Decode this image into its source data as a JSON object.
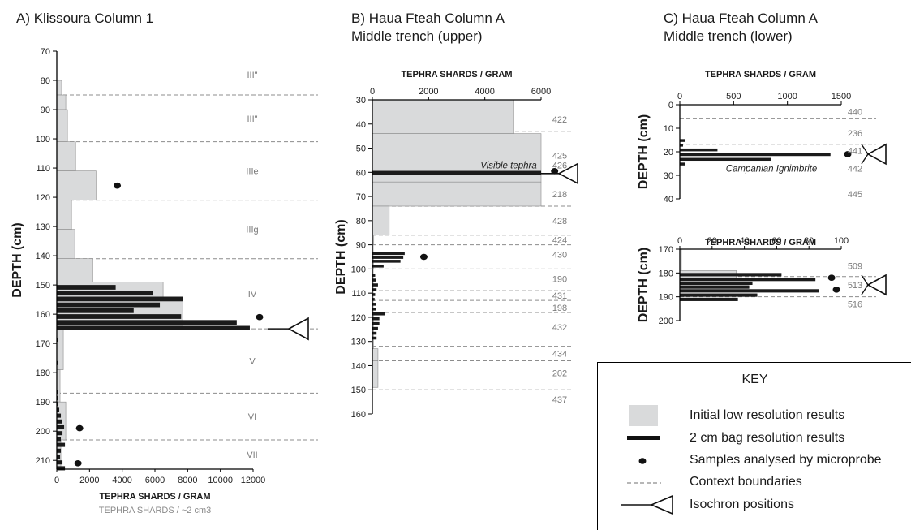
{
  "colors": {
    "low_res_fill": "#d9dadb",
    "low_res_stroke": "#8a8a8a",
    "high_res_fill": "#1b1b1b",
    "boundary": "#8c8c8c",
    "context_label": "#7a7a7a"
  },
  "panels": {
    "a": {
      "title_line1": "A) Klissoura Column 1",
      "title_line2": ""
    },
    "b": {
      "title_line1": "B) Haua Fteah Column A",
      "title_line2": "Middle trench (upper)"
    },
    "c": {
      "title_line1": "C) Haua Fteah Column A",
      "title_line2": "Middle trench (lower)"
    }
  },
  "key": {
    "title": "KEY",
    "items": [
      {
        "symbol": "low-res-swatch",
        "label": "Initial low resolution results"
      },
      {
        "symbol": "high-res-bar",
        "label": "2 cm bag resolution results"
      },
      {
        "symbol": "microprobe-dot",
        "label": "Samples analysed by microprobe"
      },
      {
        "symbol": "dashed-line",
        "label": "Context boundaries"
      },
      {
        "symbol": "isochron-triangle",
        "label": "Isochron positions"
      }
    ]
  },
  "chart_data": [
    {
      "id": "A",
      "type": "bar",
      "orientation": "horizontal",
      "title": "A) Klissoura Column 1",
      "xlabel": "TEPHRA SHARDS / GRAM",
      "xlabel2": "TEPHRA SHARDS / ~2 cm3",
      "ylabel": "DEPTH (cm)",
      "xlim": [
        0,
        12000
      ],
      "ylim": [
        70,
        213
      ],
      "xticks": [
        0,
        2000,
        4000,
        6000,
        8000,
        10000,
        12000
      ],
      "yticks": [
        70,
        80,
        90,
        100,
        110,
        120,
        130,
        140,
        150,
        160,
        170,
        180,
        190,
        200,
        210
      ],
      "low_res": [
        [
          70,
          80,
          0
        ],
        [
          80,
          85,
          300
        ],
        [
          85,
          90,
          550
        ],
        [
          90,
          101,
          650
        ],
        [
          101,
          111,
          1150
        ],
        [
          111,
          121,
          2400
        ],
        [
          121,
          131,
          900
        ],
        [
          131,
          141,
          1100
        ],
        [
          141,
          149,
          2200
        ],
        [
          149,
          165,
          6500
        ],
        [
          155,
          165,
          7700
        ],
        [
          165,
          179,
          400
        ],
        [
          179,
          190,
          200
        ],
        [
          190,
          203,
          550
        ],
        [
          203,
          213,
          250
        ]
      ],
      "high_res": [
        [
          150,
          151.6,
          3600
        ],
        [
          152,
          153.6,
          5900
        ],
        [
          154,
          155.6,
          7700
        ],
        [
          156,
          157.6,
          6300
        ],
        [
          158,
          159.6,
          4700
        ],
        [
          160,
          161.6,
          7600
        ],
        [
          162,
          163.6,
          11000
        ],
        [
          164,
          165.4,
          11800
        ],
        [
          168,
          169.4,
          50
        ],
        [
          176,
          177.4,
          30
        ],
        [
          186,
          187.4,
          20
        ],
        [
          188,
          189.4,
          60
        ],
        [
          190,
          191.4,
          80
        ],
        [
          192,
          193.4,
          150
        ],
        [
          194,
          195.4,
          250
        ],
        [
          196,
          197.4,
          300
        ],
        [
          198,
          199.4,
          450
        ],
        [
          200,
          201.4,
          350
        ],
        [
          202,
          203.4,
          250
        ],
        [
          204,
          205.4,
          500
        ],
        [
          206,
          207.4,
          250
        ],
        [
          208,
          209.4,
          200
        ],
        [
          210,
          211.4,
          350
        ],
        [
          212,
          213.4,
          500
        ]
      ],
      "microprobe": [
        [
          3300,
          116
        ],
        [
          12000,
          161
        ],
        [
          1000,
          199
        ],
        [
          900,
          211
        ]
      ],
      "boundaries": [
        85,
        101,
        121,
        141,
        165,
        187,
        203
      ],
      "contexts": [
        {
          "label": "III\"",
          "depth": 78
        },
        {
          "label": "III\"",
          "depth": 93
        },
        {
          "label": "IIIe",
          "depth": 111
        },
        {
          "label": "IIIg",
          "depth": 131
        },
        {
          "label": "IV",
          "depth": 153
        },
        {
          "label": "V",
          "depth": 176
        },
        {
          "label": "VI",
          "depth": 195
        },
        {
          "label": "VII",
          "depth": 208
        }
      ],
      "isochrons": [
        165
      ]
    },
    {
      "id": "B",
      "type": "bar",
      "orientation": "horizontal",
      "title": "B) Haua Fteah Column A Middle trench (upper)",
      "xlabel": "TEPHRA SHARDS / GRAM",
      "ylabel": "DEPTH (cm)",
      "xlim": [
        0,
        6000
      ],
      "ylim": [
        30,
        160
      ],
      "xticks": [
        0,
        2000,
        4000,
        6000
      ],
      "yticks": [
        30,
        40,
        50,
        60,
        70,
        80,
        90,
        100,
        110,
        120,
        130,
        140,
        150,
        160
      ],
      "low_res": [
        [
          30,
          44,
          5000
        ],
        [
          44,
          60,
          6000
        ],
        [
          60,
          64,
          6000
        ],
        [
          64,
          74,
          6000
        ],
        [
          74,
          86,
          600
        ],
        [
          86,
          90,
          50
        ],
        [
          90,
          95,
          30
        ],
        [
          95,
          100,
          40
        ],
        [
          100,
          109,
          30
        ],
        [
          109,
          113,
          30
        ],
        [
          113,
          118,
          30
        ],
        [
          118,
          128,
          40
        ],
        [
          128,
          133,
          40
        ],
        [
          133,
          138,
          200
        ],
        [
          138,
          149,
          200
        ]
      ],
      "high_res": [
        [
          59.4,
          61,
          6000
        ],
        [
          93,
          94.2,
          1150
        ],
        [
          94.6,
          95.8,
          1100
        ],
        [
          96.2,
          97.4,
          1000
        ],
        [
          98.2,
          99.4,
          400
        ],
        [
          102,
          103.2,
          100
        ],
        [
          104,
          105.2,
          120
        ],
        [
          106,
          107.2,
          200
        ],
        [
          108,
          109.2,
          150
        ],
        [
          110,
          111.2,
          100
        ],
        [
          112,
          113.2,
          80
        ],
        [
          114,
          115.2,
          120
        ],
        [
          116,
          117.2,
          120
        ],
        [
          118,
          119.2,
          450
        ],
        [
          120,
          121.2,
          250
        ],
        [
          122,
          123.2,
          250
        ],
        [
          124,
          125.2,
          200
        ],
        [
          126,
          127.2,
          150
        ],
        [
          128,
          129.2,
          150
        ]
      ],
      "microprobe": [
        [
          6250,
          59.5
        ],
        [
          1600,
          95
        ]
      ],
      "boundaries": [
        43,
        74,
        86,
        90,
        100,
        109,
        113,
        118,
        132,
        138,
        150
      ],
      "contexts": [
        {
          "label": "422",
          "depth": 38
        },
        {
          "label": "425",
          "depth": 53
        },
        {
          "label": "426",
          "depth": 57
        },
        {
          "label": "218",
          "depth": 69
        },
        {
          "label": "428",
          "depth": 80
        },
        {
          "label": "424",
          "depth": 88
        },
        {
          "label": "430",
          "depth": 94
        },
        {
          "label": "190",
          "depth": 104
        },
        {
          "label": "431",
          "depth": 111
        },
        {
          "label": "198",
          "depth": 116
        },
        {
          "label": "432",
          "depth": 124
        },
        {
          "label": "434",
          "depth": 135
        },
        {
          "label": "202",
          "depth": 143
        },
        {
          "label": "437",
          "depth": 154
        }
      ],
      "annotations": [
        {
          "text": "Visible tephra",
          "depth": 57
        }
      ],
      "isochrons": [
        60.5
      ]
    },
    {
      "id": "C-upper",
      "type": "bar",
      "orientation": "horizontal",
      "xlabel": "TEPHRA SHARDS / GRAM",
      "ylabel": "DEPTH (cm)",
      "xlim": [
        0,
        1500
      ],
      "ylim": [
        0,
        40
      ],
      "xticks": [
        0,
        500,
        1000,
        1500
      ],
      "yticks": [
        0,
        10,
        20,
        30,
        40
      ],
      "low_res": [],
      "high_res": [
        [
          14.6,
          15.8,
          50
        ],
        [
          16.6,
          17.8,
          30
        ],
        [
          18.6,
          19.8,
          350
        ],
        [
          20.6,
          21.8,
          1400
        ],
        [
          22.6,
          23.8,
          850
        ],
        [
          24.6,
          25.8,
          50
        ]
      ],
      "microprobe": [
        [
          1500,
          21
        ]
      ],
      "boundaries": [
        6,
        16.8,
        35
      ],
      "contexts": [
        {
          "label": "440",
          "depth": 3
        },
        {
          "label": "236",
          "depth": 12
        },
        {
          "label": "441",
          "depth": 19.5
        },
        {
          "label": "442",
          "depth": 27
        },
        {
          "label": "445",
          "depth": 38
        }
      ],
      "annotations": [
        {
          "text": "Campanian Ignimbrite",
          "depth": 27
        }
      ],
      "isochrons": [
        21
      ]
    },
    {
      "id": "C-lower",
      "type": "bar",
      "orientation": "horizontal",
      "xlabel": "TEPHRA SHARDS / GRAM",
      "ylabel": "DEPTH (cm)",
      "xlim": [
        0,
        100
      ],
      "ylim": [
        170,
        200
      ],
      "xticks": [
        0,
        20,
        40,
        60,
        80,
        100
      ],
      "yticks": [
        170,
        180,
        190,
        200
      ],
      "low_res": [
        [
          170,
          179,
          1
        ],
        [
          179,
          182,
          35
        ]
      ],
      "high_res": [
        [
          180,
          181.4,
          63
        ],
        [
          182,
          183.4,
          84
        ],
        [
          183.6,
          185,
          45
        ],
        [
          185.2,
          186.6,
          43
        ],
        [
          186.8,
          188.2,
          86
        ],
        [
          188.6,
          190,
          48
        ],
        [
          190.4,
          191.8,
          36
        ]
      ],
      "microprobe": [
        [
          90,
          182
        ],
        [
          93,
          187
        ]
      ],
      "boundaries": [
        181.5,
        190
      ],
      "contexts": [
        {
          "label": "509",
          "depth": 177
        },
        {
          "label": "513",
          "depth": 185
        },
        {
          "label": "516",
          "depth": 193
        }
      ],
      "isochrons": [
        185
      ]
    }
  ]
}
